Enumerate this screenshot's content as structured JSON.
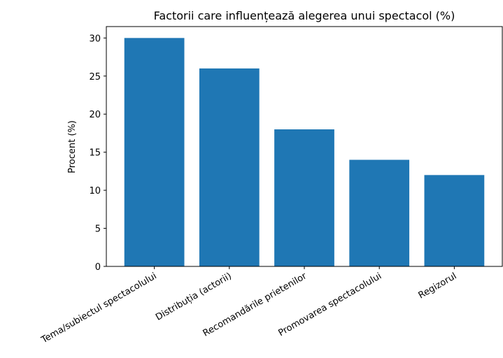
{
  "chart_data": {
    "type": "bar",
    "title": "Factorii care influențează alegerea unui spectacol (%)",
    "ylabel": "Procent (%)",
    "categories": [
      "Tema/subiectul spectacolului",
      "Distribuția (actorii)",
      "Recomandările prietenilor",
      "Promovarea spectacolului",
      "Regizorul"
    ],
    "values": [
      30,
      26,
      18,
      14,
      12
    ],
    "color": "#1f77b4",
    "ylim": [
      0,
      31.5
    ],
    "yticks": [
      0,
      5,
      10,
      15,
      20,
      25,
      30
    ],
    "grid": false
  }
}
